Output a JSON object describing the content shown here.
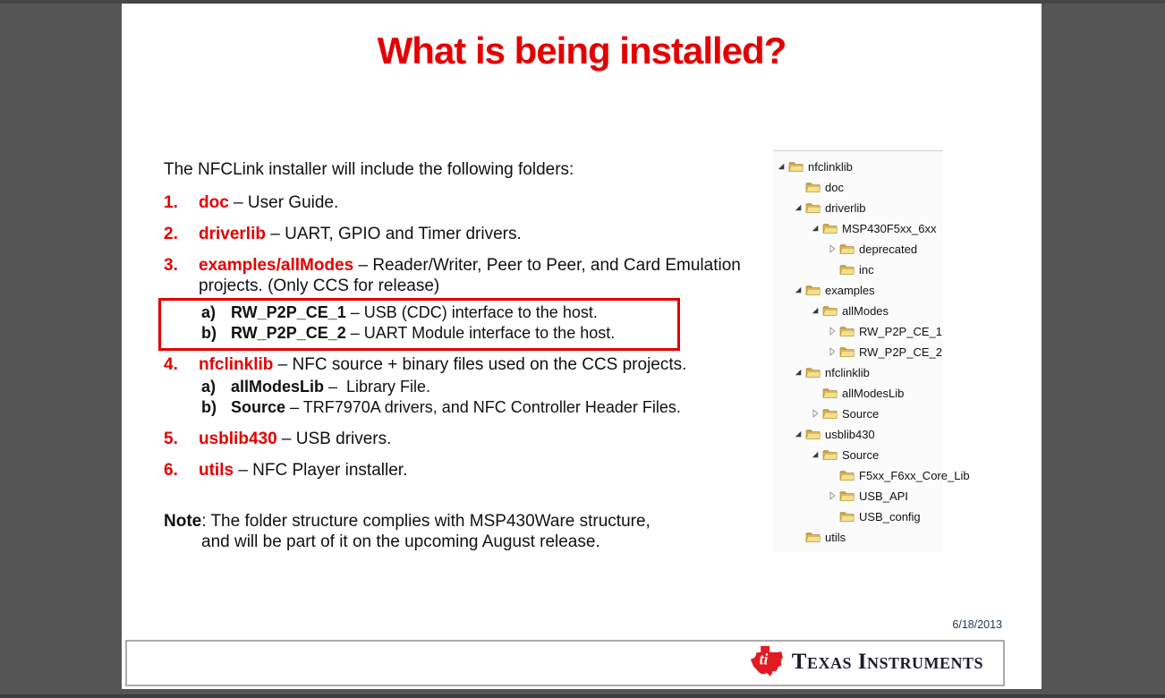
{
  "slide": {
    "title": "What is being installed?",
    "intro": "The NFCLink installer will include the following folders:",
    "items": [
      {
        "num": "1.",
        "keyword": "doc",
        "rest": " – User Guide."
      },
      {
        "num": "2.",
        "keyword": "driverlib",
        "rest": " – UART, GPIO and Timer drivers."
      },
      {
        "num": "3.",
        "keyword": "examples/allModes",
        "rest": " – Reader/Writer, Peer to Peer, and Card Emulation projects. (Only CCS for release)",
        "subitems_boxed": true,
        "subitems": [
          {
            "letter": "a)",
            "keyword": "RW_P2P_CE_1",
            "rest": " – USB (CDC) interface to the host."
          },
          {
            "letter": "b)",
            "keyword": "RW_P2P_CE_2",
            "rest": " – UART Module interface to the host."
          }
        ]
      },
      {
        "num": "4.",
        "keyword": "nfclinklib",
        "rest": " – NFC source + binary files used on the CCS projects.",
        "subitems_boxed": false,
        "subitems": [
          {
            "letter": "a)",
            "keyword": "allModesLib",
            "rest": " –  Library File."
          },
          {
            "letter": "b)",
            "keyword": "Source",
            "rest": " – TRF7970A drivers, and NFC Controller Header Files."
          }
        ]
      },
      {
        "num": "5.",
        "keyword": "usblib430",
        "rest": " – USB drivers."
      },
      {
        "num": "6.",
        "keyword": "utils",
        "rest": " – NFC Player installer."
      }
    ],
    "note": {
      "label": "Note",
      "line1": ": The folder structure complies with MSP430Ware structure,",
      "line2": "and will be part of it on the upcoming August release."
    },
    "date": "6/18/2013",
    "logo_text": "Texas Instruments"
  },
  "tree": {
    "items": [
      {
        "label": "nfclinklib",
        "level": 0,
        "state": "expanded"
      },
      {
        "label": "doc",
        "level": 1,
        "state": "none"
      },
      {
        "label": "driverlib",
        "level": 1,
        "state": "expanded"
      },
      {
        "label": "MSP430F5xx_6xx",
        "level": 2,
        "state": "expanded"
      },
      {
        "label": "deprecated",
        "level": 3,
        "state": "collapsed"
      },
      {
        "label": "inc",
        "level": 3,
        "state": "none"
      },
      {
        "label": "examples",
        "level": 1,
        "state": "expanded"
      },
      {
        "label": "allModes",
        "level": 2,
        "state": "expanded"
      },
      {
        "label": "RW_P2P_CE_1",
        "level": 3,
        "state": "collapsed"
      },
      {
        "label": "RW_P2P_CE_2",
        "level": 3,
        "state": "collapsed"
      },
      {
        "label": "nfclinklib",
        "level": 1,
        "state": "expanded"
      },
      {
        "label": "allModesLib",
        "level": 2,
        "state": "none"
      },
      {
        "label": "Source",
        "level": 2,
        "state": "collapsed"
      },
      {
        "label": "usblib430",
        "level": 1,
        "state": "expanded"
      },
      {
        "label": "Source",
        "level": 2,
        "state": "expanded"
      },
      {
        "label": "F5xx_F6xx_Core_Lib",
        "level": 3,
        "state": "none"
      },
      {
        "label": "USB_API",
        "level": 3,
        "state": "collapsed"
      },
      {
        "label": "USB_config",
        "level": 3,
        "state": "none"
      },
      {
        "label": "utils",
        "level": 1,
        "state": "none"
      }
    ]
  },
  "icons": {
    "expanded": "expanded-arrow-icon",
    "collapsed": "collapsed-arrow-icon",
    "folder": "folder-icon",
    "logo": "ti-texas-logo-icon"
  },
  "colors": {
    "accent_red": "#e40000",
    "highlight_box_red": "#e00000",
    "background_gray": "#555555",
    "folder_yellow": "#e7c564",
    "logo_red": "#e11b22"
  }
}
